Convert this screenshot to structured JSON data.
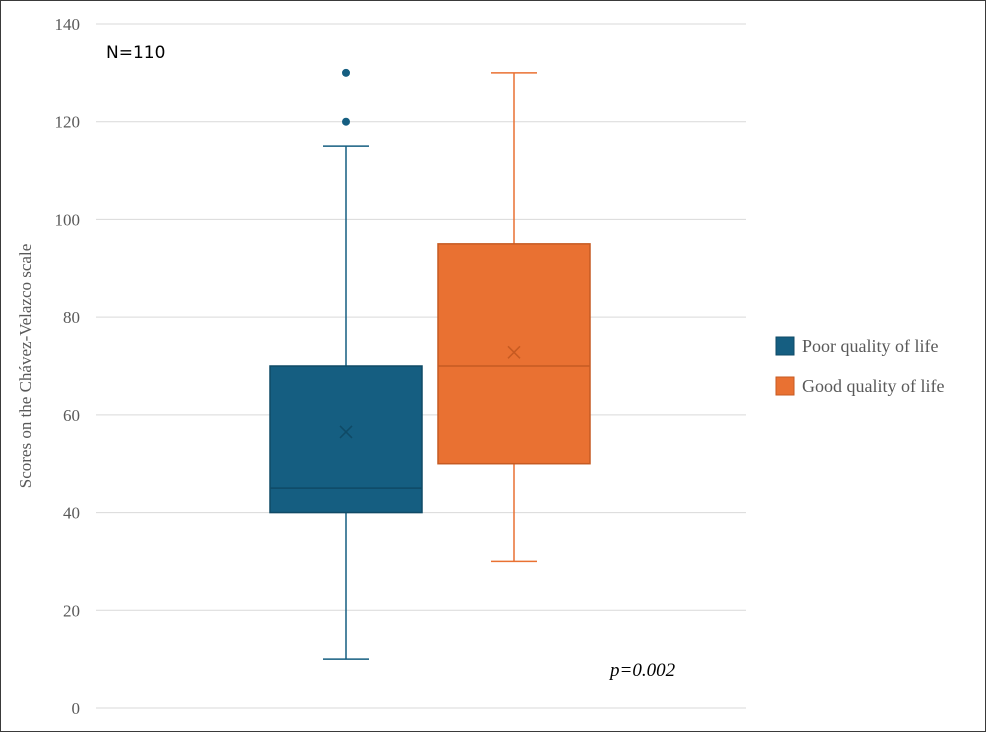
{
  "chart_data": {
    "type": "box",
    "title": "",
    "xlabel": "",
    "ylabel": "Scores on the Chávez-Velazco scale",
    "ylim": [
      0,
      140
    ],
    "yticks": [
      0,
      20,
      40,
      60,
      80,
      100,
      120,
      140
    ],
    "grid": true,
    "legend_position": "right",
    "annotations": {
      "n": "N=110",
      "p_value": "p=0.002"
    },
    "series": [
      {
        "name": "Poor quality of life",
        "color": "#155e81",
        "min": 10,
        "q1": 40,
        "median": 45,
        "q3": 70,
        "max": 115,
        "mean": 56.5,
        "outliers": [
          120,
          130
        ]
      },
      {
        "name": "Good quality of life",
        "color": "#e97132",
        "min": 30,
        "q1": 50,
        "median": 70,
        "q3": 95,
        "max": 130,
        "mean": 72.8,
        "outliers": []
      }
    ]
  }
}
